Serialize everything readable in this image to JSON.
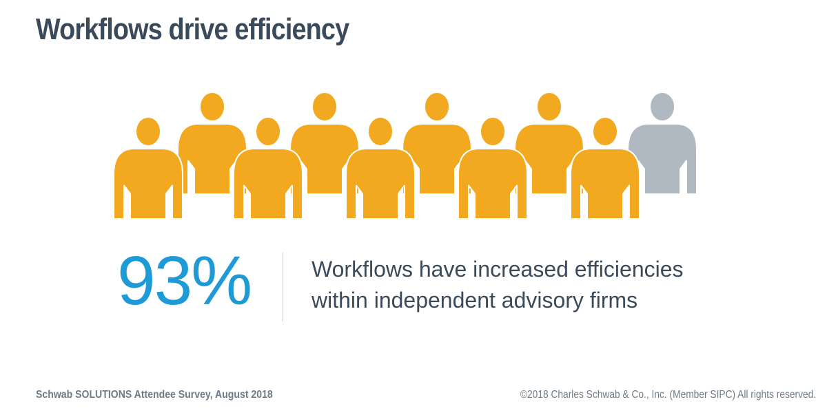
{
  "title": "Workflows drive efficiency",
  "stat": {
    "value": "93%",
    "line1": "Workflows have increased efficiencies",
    "line2": "within independent advisory firms"
  },
  "icon_grid": {
    "total_people": 10,
    "highlighted_people": 9,
    "person_icon": "person-icon"
  },
  "footer": {
    "source": "Schwab SOLUTIONS Attendee Survey, August 2018",
    "copyright": "©2018 Charles Schwab & Co., Inc. (Member SIPC) All rights reserved."
  },
  "colors": {
    "title": "#3a4a5a",
    "highlight": "#f2a91f",
    "muted": "#b0b8c1",
    "stat_value": "#1e9ad6",
    "stat_text": "#3a4a5a",
    "footer": "#6e7a86"
  }
}
